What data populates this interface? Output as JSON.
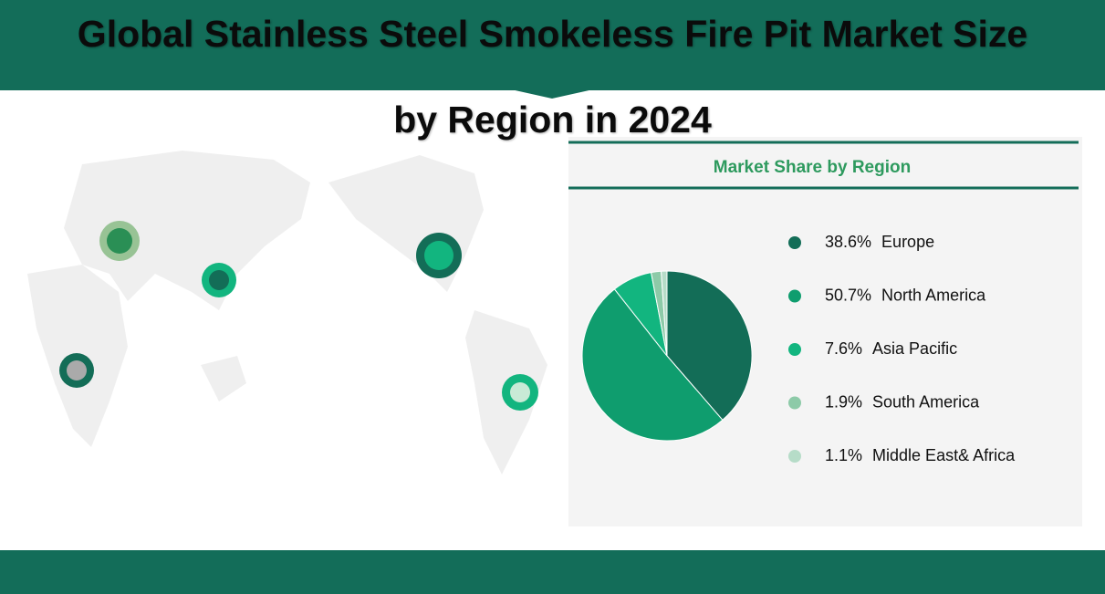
{
  "chart_data": {
    "type": "pie",
    "title": "Global Stainless Steel Smokeless Fire Pit Market Size",
    "subtitle": "by Region in 2024",
    "panel_title": "Market Share by Region",
    "categories": [
      "Europe",
      "North America",
      "Asia Pacific",
      "South America",
      "Middle East& Africa"
    ],
    "values": [
      38.6,
      50.7,
      7.6,
      1.9,
      1.1
    ],
    "value_labels": [
      "38.6%",
      "50.7%",
      "7.6%",
      "1.9%",
      "1.1%"
    ],
    "colors": [
      "#136d57",
      "#0f9d6e",
      "#12b57f",
      "#8dcaa8",
      "#b6dcc8"
    ]
  }
}
